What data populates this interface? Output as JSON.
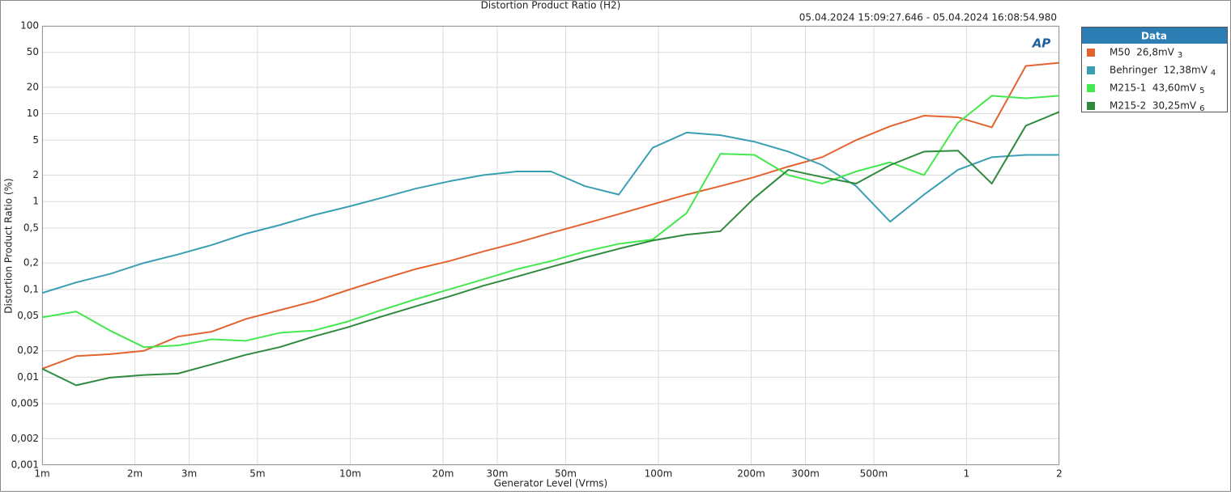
{
  "chart_data": {
    "type": "line",
    "title": "Distortion Product Ratio (H2)",
    "subtitle": "05.04.2024 15:09:27.646 - 05.04.2024 16:08:54.980",
    "x_label": "Generator Level (Vrms)",
    "y_label": "Distortion Product Ratio (%)",
    "logo": "AP",
    "legend_title": "Data",
    "legend": "outside-right",
    "xscale": "log",
    "yscale": "log",
    "grid": true,
    "xlim": [
      0.001,
      2
    ],
    "ylim": [
      0.001,
      100
    ],
    "xticks": [
      {
        "value": 0.001,
        "label": "1m"
      },
      {
        "value": 0.002,
        "label": "2m"
      },
      {
        "value": 0.003,
        "label": "3m"
      },
      {
        "value": 0.005,
        "label": "5m"
      },
      {
        "value": 0.01,
        "label": "10m"
      },
      {
        "value": 0.02,
        "label": "20m"
      },
      {
        "value": 0.03,
        "label": "30m"
      },
      {
        "value": 0.05,
        "label": "50m"
      },
      {
        "value": 0.1,
        "label": "100m"
      },
      {
        "value": 0.2,
        "label": "200m"
      },
      {
        "value": 0.3,
        "label": "300m"
      },
      {
        "value": 0.5,
        "label": "500m"
      },
      1,
      2
    ],
    "yticks": [
      100,
      50,
      20,
      10,
      5,
      2,
      1,
      {
        "value": 0.5,
        "label": "0,5"
      },
      {
        "value": 0.2,
        "label": "0,2"
      },
      {
        "value": 0.1,
        "label": "0,1"
      },
      {
        "value": 0.05,
        "label": "0,05"
      },
      {
        "value": 0.02,
        "label": "0,02"
      },
      {
        "value": 0.01,
        "label": "0,01"
      },
      {
        "value": 0.005,
        "label": "0,005"
      },
      {
        "value": 0.002,
        "label": "0,002"
      },
      {
        "value": 0.001,
        "label": "0,001"
      }
    ],
    "x": [
      0.001,
      0.00129,
      0.00166,
      0.00214,
      0.00276,
      0.00355,
      0.00458,
      0.0059,
      0.0076,
      0.0098,
      0.01262,
      0.01626,
      0.02095,
      0.027,
      0.0348,
      0.0448,
      0.0577,
      0.0744,
      0.0958,
      0.1235,
      0.159,
      0.205,
      0.264,
      0.34,
      0.438,
      0.565,
      0.728,
      0.938,
      1.208,
      1.557,
      2.0
    ],
    "series": [
      {
        "name": "M50  26,8mV",
        "suffix": "3",
        "color": "#e2632f",
        "values": [
          0.0125,
          0.0174,
          0.0183,
          0.02,
          0.029,
          0.033,
          0.046,
          0.058,
          0.073,
          0.098,
          0.13,
          0.17,
          0.21,
          0.27,
          0.34,
          0.44,
          0.56,
          0.72,
          0.93,
          1.2,
          1.5,
          1.9,
          2.5,
          3.2,
          5.0,
          7.2,
          9.5,
          9.1,
          7.0,
          35,
          38
        ]
      },
      {
        "name": "Behringer  12,38mV",
        "suffix": "4",
        "color": "#3a9fb3",
        "values": [
          0.091,
          0.12,
          0.15,
          0.2,
          0.25,
          0.32,
          0.43,
          0.54,
          0.7,
          0.87,
          1.1,
          1.4,
          1.7,
          2.0,
          2.2,
          2.2,
          1.5,
          1.2,
          4.1,
          6.1,
          5.7,
          4.8,
          3.7,
          2.6,
          1.5,
          0.59,
          1.2,
          2.3,
          3.2,
          3.4,
          3.4
        ]
      },
      {
        "name": "M215-1  43,60mV",
        "suffix": "5",
        "color": "#44e84e",
        "values": [
          0.048,
          0.056,
          0.034,
          0.022,
          0.023,
          0.027,
          0.026,
          0.032,
          0.034,
          0.043,
          0.058,
          0.077,
          0.1,
          0.13,
          0.17,
          0.21,
          0.27,
          0.33,
          0.37,
          0.74,
          3.5,
          3.4,
          2.0,
          1.6,
          2.2,
          2.8,
          2.0,
          7.9,
          16,
          15,
          16
        ]
      },
      {
        "name": "M215-2  30,25mV",
        "suffix": "6",
        "color": "#2f8a3e",
        "values": [
          0.0125,
          0.0081,
          0.0099,
          0.0106,
          0.011,
          0.014,
          0.018,
          0.022,
          0.029,
          0.037,
          0.049,
          0.064,
          0.083,
          0.11,
          0.14,
          0.18,
          0.23,
          0.29,
          0.36,
          0.42,
          0.46,
          1.1,
          2.3,
          1.9,
          1.6,
          2.6,
          3.7,
          3.8,
          1.6,
          7.3,
          10.5
        ]
      }
    ]
  }
}
